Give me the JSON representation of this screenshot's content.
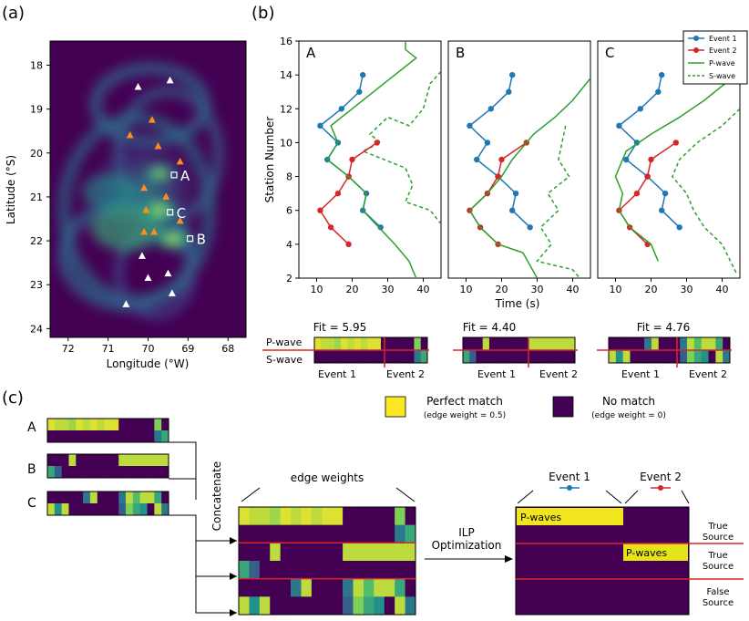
{
  "panel_labels": {
    "a": "(a)",
    "b": "(b)",
    "c": "(c)"
  },
  "colors": {
    "purple": "#440154",
    "yellow": "#fde725",
    "green": "#35b779",
    "teal": "#21918c",
    "blue": "#1f77b4",
    "red": "#d62728",
    "linegreen": "#2ca02c",
    "orange": "#ff7f0e",
    "mapbg": "#3b1c5a"
  },
  "map": {
    "xlabel": "Longitude (°W)",
    "ylabel": "Latitude (°S)",
    "xticks": [
      "72",
      "71",
      "70",
      "69",
      "68"
    ],
    "yticks": [
      "18",
      "19",
      "20",
      "21",
      "22",
      "23",
      "24"
    ],
    "sources": [
      {
        "label": "A",
        "lon": 69.35,
        "lat": 20.5
      },
      {
        "label": "C",
        "lon": 69.45,
        "lat": 21.35
      },
      {
        "label": "B",
        "lon": 68.95,
        "lat": 21.95
      }
    ],
    "white_stations": [
      [
        70.25,
        18.5
      ],
      [
        69.45,
        18.35
      ],
      [
        70.15,
        22.35
      ],
      [
        70.0,
        22.85
      ],
      [
        69.5,
        22.75
      ],
      [
        69.4,
        23.2
      ],
      [
        70.55,
        23.45
      ]
    ],
    "orange_stations": [
      [
        69.9,
        19.25
      ],
      [
        70.45,
        19.6
      ],
      [
        69.75,
        19.85
      ],
      [
        69.2,
        20.2
      ],
      [
        70.1,
        20.8
      ],
      [
        69.55,
        21.0
      ],
      [
        70.05,
        21.3
      ],
      [
        69.2,
        21.55
      ],
      [
        69.85,
        21.8
      ],
      [
        70.1,
        21.8
      ]
    ]
  },
  "chart_data": [
    {
      "type": "line",
      "title": "A",
      "xlabel": "Time (s)",
      "ylabel": "Station Number",
      "xlim": [
        5,
        45
      ],
      "ylim": [
        2,
        16
      ],
      "xticks": [
        "10",
        "20",
        "30",
        "40"
      ],
      "yticks": [
        "2",
        "4",
        "6",
        "8",
        "10",
        "12",
        "14",
        "16"
      ],
      "series": [
        {
          "name": "Event 1",
          "points": [
            [
              23,
              14
            ],
            [
              22,
              13
            ],
            [
              17,
              12
            ],
            [
              11,
              11
            ],
            [
              16,
              10
            ],
            [
              13,
              9
            ],
            [
              19,
              8
            ],
            [
              24,
              7
            ],
            [
              23,
              6
            ],
            [
              28,
              5
            ]
          ]
        },
        {
          "name": "Event 2",
          "points": [
            [
              27,
              10
            ],
            [
              20,
              9
            ],
            [
              19,
              8
            ],
            [
              16,
              7
            ],
            [
              11,
              6
            ],
            [
              14,
              5
            ],
            [
              19,
              4
            ]
          ]
        },
        {
          "name": "P-wave",
          "points": [
            [
              35,
              16
            ],
            [
              35,
              15.5
            ],
            [
              38,
              15
            ],
            [
              26,
              13
            ],
            [
              20,
              12
            ],
            [
              14,
              11
            ],
            [
              16,
              10
            ],
            [
              13,
              9
            ],
            [
              19,
              8
            ],
            [
              24,
              7
            ],
            [
              23,
              6
            ],
            [
              32,
              4
            ],
            [
              36,
              3
            ],
            [
              38,
              2
            ]
          ]
        },
        {
          "name": "S-wave",
          "points": [
            [
              45,
              14.2
            ],
            [
              42,
              13.5
            ],
            [
              40,
              12
            ],
            [
              36,
              11
            ],
            [
              30,
              11.5
            ],
            [
              25,
              10.5
            ],
            [
              28,
              10
            ],
            [
              23,
              9.5
            ],
            [
              35,
              8.5
            ],
            [
              37,
              7.5
            ],
            [
              35,
              6.5
            ],
            [
              42,
              6
            ],
            [
              45,
              5.2
            ]
          ]
        }
      ]
    },
    {
      "type": "line",
      "title": "B",
      "xlabel": "Time (s)",
      "ylabel": "Station Number",
      "xlim": [
        5,
        45
      ],
      "ylim": [
        2,
        16
      ],
      "xticks": [
        "10",
        "20",
        "30",
        "40"
      ],
      "series": [
        {
          "name": "Event 1",
          "points": [
            [
              23,
              14
            ],
            [
              22,
              13
            ],
            [
              17,
              12
            ],
            [
              11,
              11
            ],
            [
              16,
              10
            ],
            [
              13,
              9
            ],
            [
              19,
              8
            ],
            [
              24,
              7
            ],
            [
              23,
              6
            ],
            [
              28,
              5
            ]
          ]
        },
        {
          "name": "Event 2",
          "points": [
            [
              27,
              10
            ],
            [
              20,
              9
            ],
            [
              19,
              8
            ],
            [
              16,
              7
            ],
            [
              11,
              6
            ],
            [
              14,
              5
            ],
            [
              19,
              4
            ]
          ]
        },
        {
          "name": "P-wave",
          "points": [
            [
              45,
              13.8
            ],
            [
              40,
              12.5
            ],
            [
              35,
              11.5
            ],
            [
              29,
              10.5
            ],
            [
              23,
              9
            ],
            [
              20,
              8
            ],
            [
              16,
              7
            ],
            [
              11,
              6
            ],
            [
              14,
              5
            ],
            [
              19,
              4
            ],
            [
              26,
              3.5
            ],
            [
              30,
              2
            ]
          ]
        },
        {
          "name": "S-wave",
          "points": [
            [
              38,
              11
            ],
            [
              37,
              10
            ],
            [
              36,
              9
            ],
            [
              39,
              8
            ],
            [
              33,
              7
            ],
            [
              36,
              6
            ],
            [
              31,
              5
            ],
            [
              34,
              4
            ],
            [
              30,
              3
            ],
            [
              40,
              2.5
            ],
            [
              42,
              2
            ]
          ]
        }
      ]
    },
    {
      "type": "line",
      "title": "C",
      "xlabel": "Time (s)",
      "ylabel": "Station Number",
      "xlim": [
        5,
        45
      ],
      "ylim": [
        2,
        16
      ],
      "xticks": [
        "10",
        "20",
        "30",
        "40"
      ],
      "series": [
        {
          "name": "Event 1",
          "points": [
            [
              23,
              14
            ],
            [
              22,
              13
            ],
            [
              17,
              12
            ],
            [
              11,
              11
            ],
            [
              16,
              10
            ],
            [
              13,
              9
            ],
            [
              19,
              8
            ],
            [
              24,
              7
            ],
            [
              23,
              6
            ],
            [
              28,
              5
            ]
          ]
        },
        {
          "name": "Event 2",
          "points": [
            [
              27,
              10
            ],
            [
              20,
              9
            ],
            [
              19,
              8
            ],
            [
              16,
              7
            ],
            [
              11,
              6
            ],
            [
              14,
              5
            ],
            [
              19,
              4
            ]
          ]
        },
        {
          "name": "P-wave",
          "points": [
            [
              45,
              14.2
            ],
            [
              35,
              12.5
            ],
            [
              28,
              11.5
            ],
            [
              20,
              10.5
            ],
            [
              13,
              9.5
            ],
            [
              10,
              8
            ],
            [
              12,
              7
            ],
            [
              11,
              6
            ],
            [
              14,
              5
            ],
            [
              20,
              4
            ],
            [
              22,
              3
            ]
          ]
        },
        {
          "name": "S-wave",
          "points": [
            [
              45,
              12
            ],
            [
              40,
              11
            ],
            [
              33,
              10
            ],
            [
              28,
              9
            ],
            [
              26,
              8
            ],
            [
              30,
              7
            ],
            [
              32,
              6
            ],
            [
              35,
              5
            ],
            [
              40,
              4
            ],
            [
              44,
              2.3
            ]
          ]
        }
      ]
    }
  ],
  "legend": {
    "items": [
      "Event 1",
      "Event 2",
      "P-wave",
      "S-wave"
    ]
  },
  "fits": [
    {
      "label": "Fit = 5.95"
    },
    {
      "label": "Fit = 4.40"
    },
    {
      "label": "Fit = 4.76"
    }
  ],
  "matrix_labels": {
    "p": "P-wave",
    "s": "S-wave",
    "e1": "Event 1",
    "e2": "Event 2"
  },
  "matrices": {
    "A": [
      [
        0.95,
        0.9,
        0.9,
        0.85,
        0.95,
        0.9,
        0.95,
        0.9,
        0.95,
        0.95,
        0,
        0,
        0,
        0,
        0,
        0.8,
        0
      ],
      [
        0,
        0,
        0,
        0,
        0,
        0,
        0,
        0,
        0,
        0,
        0,
        0,
        0,
        0,
        0,
        0.4,
        0.6
      ]
    ],
    "B": [
      [
        0,
        0,
        0,
        0.9,
        0,
        0,
        0,
        0,
        0,
        0,
        0.9,
        0.9,
        0.9,
        0.9,
        0.9,
        0.9,
        0.9
      ],
      [
        0.6,
        0.3,
        0,
        0,
        0,
        0,
        0,
        0,
        0,
        0,
        0,
        0,
        0,
        0,
        0,
        0,
        0
      ]
    ],
    "C": [
      [
        0,
        0,
        0,
        0,
        0,
        0.4,
        0.9,
        0,
        0,
        0,
        0.4,
        0.9,
        0.7,
        0.9,
        0.9,
        0.6,
        0
      ],
      [
        0.9,
        0.5,
        0.9,
        0,
        0,
        0,
        0,
        0,
        0,
        0,
        0.3,
        0.8,
        0.6,
        0.5,
        0,
        0.9,
        0.4
      ]
    ]
  },
  "legend_c": {
    "perfect": "Perfect match",
    "perfect_sub": "(edge weight = 0.5)",
    "none": "No match",
    "none_sub": "(edge weight = 0)"
  },
  "texts": {
    "concatenate": "Concatenate",
    "edge_weights": "edge weights",
    "ilp1": "ILP",
    "ilp2": "Optimization",
    "pwaves": "P-waves",
    "event1": "Event 1",
    "event2": "Event 2",
    "true1": "True",
    "source1": "Source",
    "true2": "True",
    "source2": "Source",
    "false3": "False",
    "source3": "Source",
    "rowA": "A",
    "rowB": "B",
    "rowC": "C"
  }
}
